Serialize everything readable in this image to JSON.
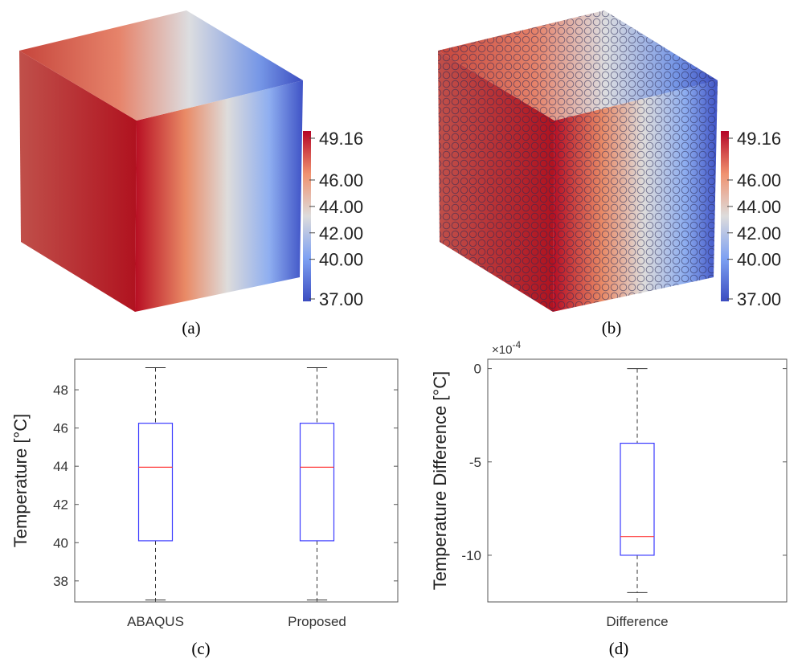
{
  "colors": {
    "hot": "#b30326",
    "mid": "#dcdcdc",
    "cold": "#3b4cc0",
    "box": "#3b3bff",
    "median": "#ff3b3b",
    "whisker": "#333333"
  },
  "panels": {
    "a": {
      "caption": "(a)",
      "colorbar_ticks": [
        "49.16",
        "46.00",
        "44.00",
        "42.00",
        "40.00",
        "37.00"
      ]
    },
    "b": {
      "caption": "(b)",
      "colorbar_ticks": [
        "49.16",
        "46.00",
        "44.00",
        "42.00",
        "40.00",
        "37.00"
      ]
    },
    "c": {
      "caption": "(c)"
    },
    "d": {
      "caption": "(d)",
      "exponent_label": "×10",
      "exponent_power": "-4"
    }
  },
  "chart_data": [
    {
      "panel": "c",
      "type": "box",
      "ylabel": "Temperature [°C]",
      "ylim": [
        36.9,
        49.6
      ],
      "yticks": [
        38,
        40,
        42,
        44,
        46,
        48
      ],
      "categories": [
        "ABAQUS",
        "Proposed"
      ],
      "boxes": [
        {
          "name": "ABAQUS",
          "min": 37.0,
          "q1": 40.1,
          "median": 43.95,
          "q3": 46.25,
          "max": 49.16
        },
        {
          "name": "Proposed",
          "min": 37.0,
          "q1": 40.1,
          "median": 43.95,
          "q3": 46.25,
          "max": 49.16
        }
      ],
      "grid": false
    },
    {
      "panel": "d",
      "type": "box",
      "ylabel": "Temperature Difference [°C]",
      "ylim": [
        -12.5,
        0.5
      ],
      "yticks": [
        0,
        -5,
        -10
      ],
      "y_multiplier": "1e-4",
      "categories": [
        "Difference"
      ],
      "boxes": [
        {
          "name": "Difference",
          "min": -12.0,
          "q1": -10.0,
          "median": -9.0,
          "q3": -4.0,
          "max": 0.0
        }
      ],
      "grid": false
    }
  ]
}
